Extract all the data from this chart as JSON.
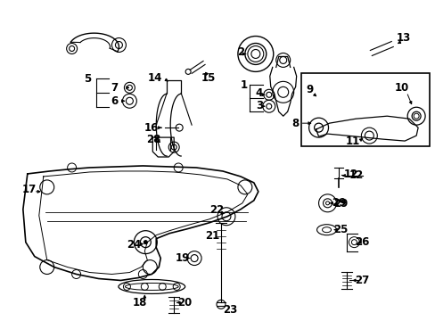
{
  "bg": "#ffffff",
  "lc": "#000000",
  "fig_w": 4.89,
  "fig_h": 3.6,
  "dpi": 100,
  "fs": 7.5,
  "fsb": 8.5
}
